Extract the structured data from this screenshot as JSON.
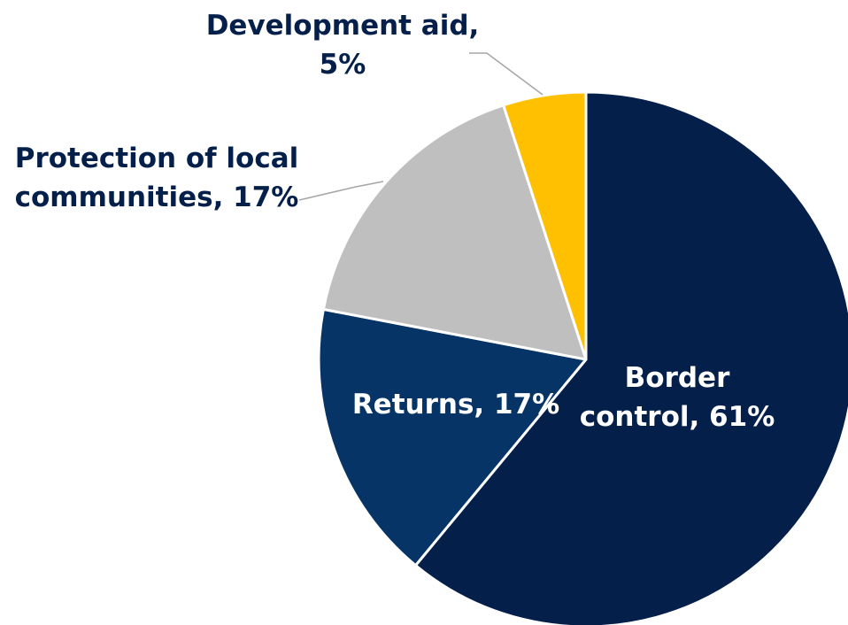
{
  "chart_data": {
    "type": "pie",
    "title": "",
    "start_angle_deg": 90,
    "direction": "clockwise",
    "slices": [
      {
        "name": "Border control",
        "value": 61,
        "label_lines": [
          "Border",
          "control, 61%"
        ],
        "color": "#041f4a",
        "label_color": "#ffffff"
      },
      {
        "name": "Returns",
        "value": 17,
        "label_lines": [
          "Returns, 17%"
        ],
        "color": "#063467",
        "label_color": "#ffffff"
      },
      {
        "name": "Protection of local communities",
        "value": 17,
        "label_lines": [
          "Protection of local",
          "communities, 17%"
        ],
        "color": "#bfbfbf",
        "label_color": "#041f4a"
      },
      {
        "name": "Development aid",
        "value": 5,
        "label_lines": [
          "Development aid,",
          "5%"
        ],
        "color": "#fec000",
        "label_color": "#041f4a"
      }
    ]
  }
}
